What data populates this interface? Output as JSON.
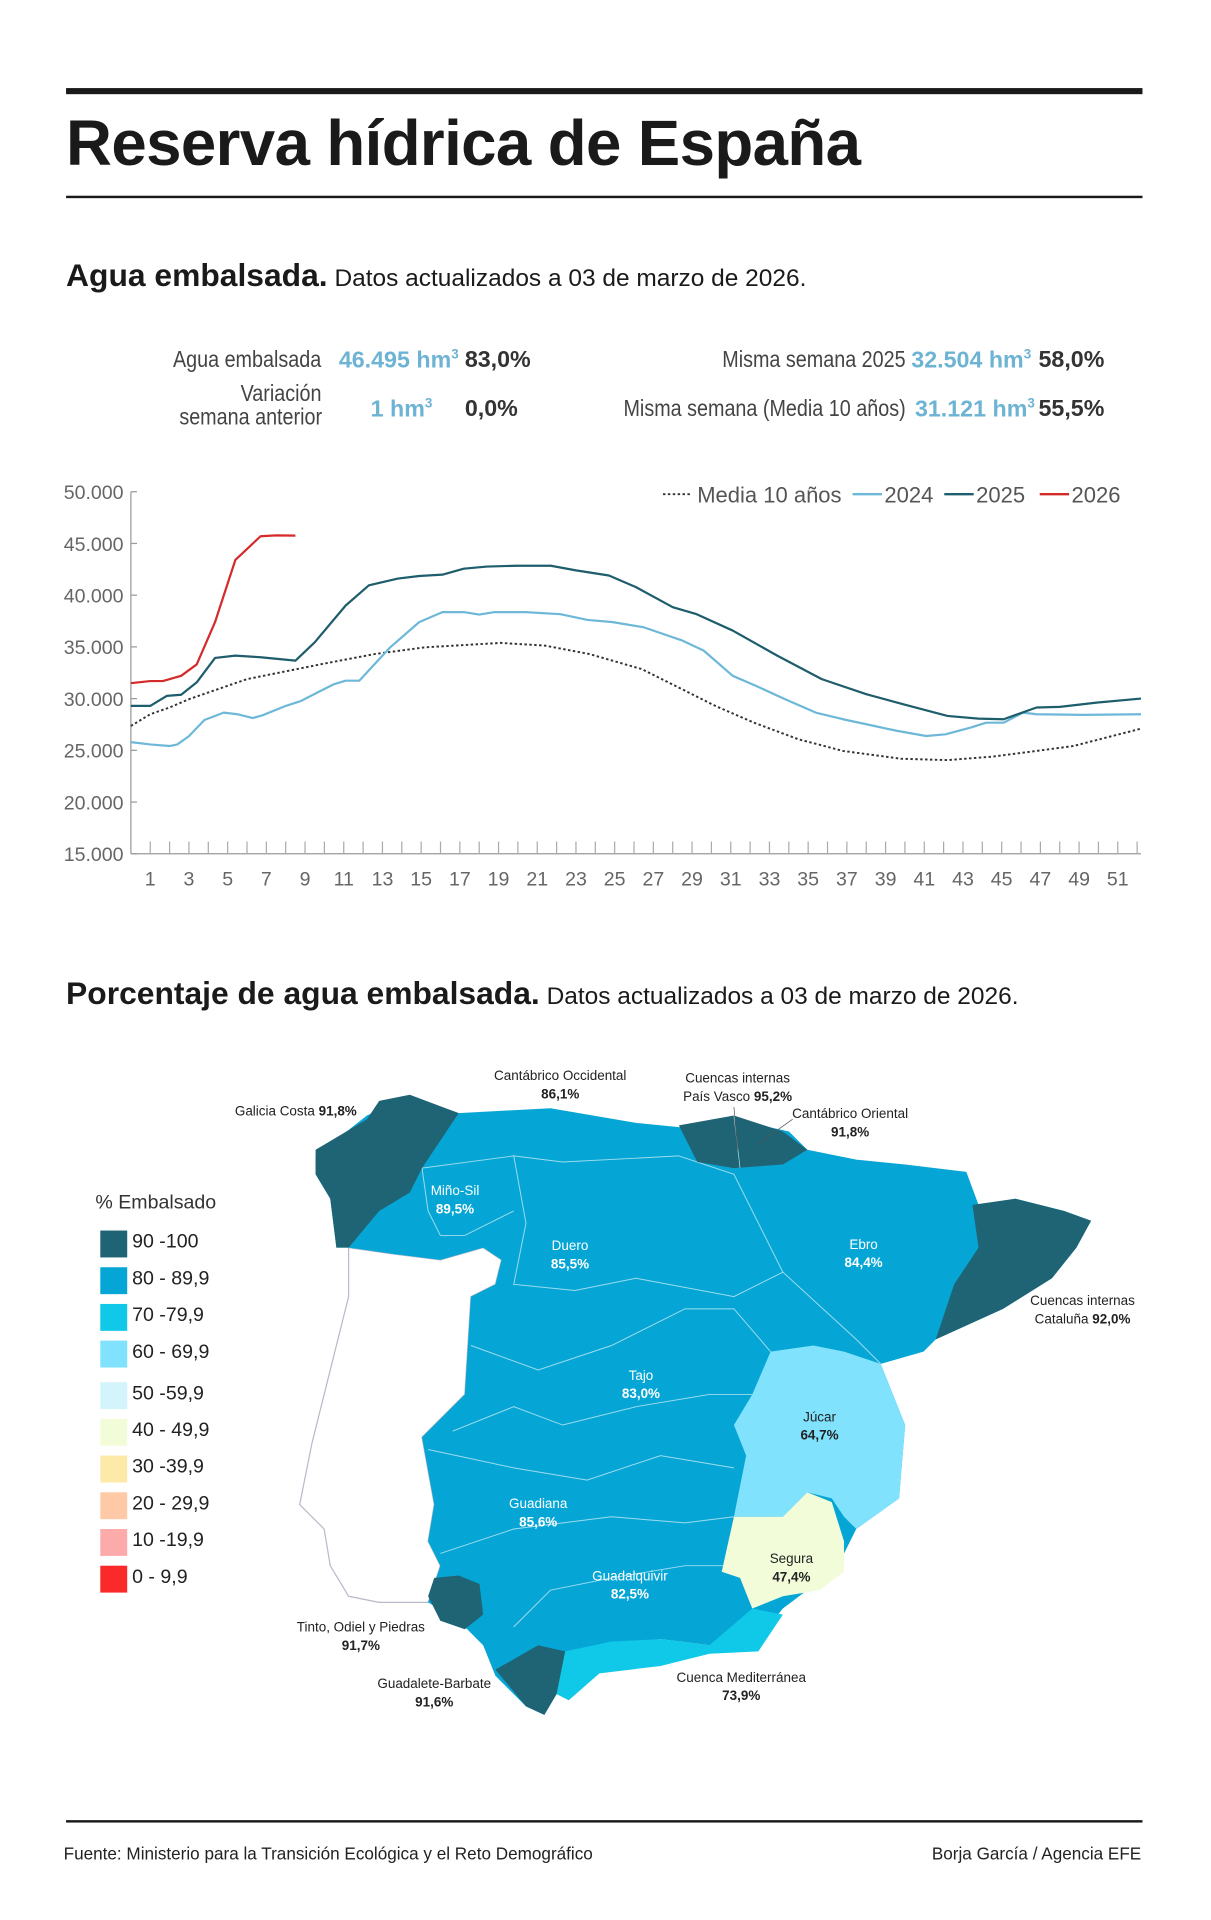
{
  "title": "Reserva hídrica de España",
  "section1": {
    "heading": "Agua embalsada.",
    "subtitle": "Datos actualizados a 03 de marzo de 2026."
  },
  "stats": {
    "current": {
      "label": "Agua embalsada",
      "value": "46.495 hm",
      "sup": "3",
      "pct": "83,0%"
    },
    "variation": {
      "label1": "Variación",
      "label2": "semana anterior",
      "value": "1 hm",
      "sup": "3",
      "pct": "0,0%"
    },
    "last_year": {
      "label": "Misma semana 2025",
      "value": "32.504 hm",
      "sup": "3",
      "pct": "58,0%"
    },
    "avg10": {
      "label": "Misma semana (Media 10 años)",
      "value": "31.121 hm",
      "sup": "3",
      "pct": "55,5%"
    }
  },
  "chart_data": {
    "type": "line",
    "xlabel": "",
    "ylabel": "",
    "ylim": [
      15000,
      50000
    ],
    "xlim": [
      0,
      52.2
    ],
    "yticks": [
      "15.000",
      "20.000",
      "25.000",
      "30.000",
      "35.000",
      "40.000",
      "45.000",
      "50.000"
    ],
    "ytick_values": [
      15000,
      20000,
      25000,
      30000,
      35000,
      40000,
      45000,
      50000
    ],
    "xticks": [
      "1",
      "3",
      "5",
      "7",
      "9",
      "11",
      "13",
      "15",
      "17",
      "19",
      "21",
      "23",
      "25",
      "27",
      "29",
      "31",
      "33",
      "35",
      "37",
      "39",
      "41",
      "43",
      "45",
      "47",
      "49",
      "51"
    ],
    "legend_position": "top-right",
    "grid": false,
    "series": [
      {
        "name": "Media 10 años",
        "color": "#333333",
        "style": "dotted",
        "x": [
          0,
          1,
          2,
          3,
          6,
          9.9,
          12.6,
          15.2,
          19.1,
          21.4,
          23.7,
          26.4,
          28.3,
          30.2,
          32.2,
          34.5,
          36.8,
          39.8,
          42.2,
          44.5,
          46.8,
          48.7,
          52.2
        ],
        "y": [
          27360,
          28490,
          29140,
          29950,
          31890,
          33350,
          34310,
          34960,
          35380,
          35120,
          34310,
          32860,
          31080,
          29300,
          27680,
          26070,
          24940,
          24190,
          24060,
          24390,
          24940,
          25420,
          27100
        ]
      },
      {
        "name": "2024",
        "color": "#6db8d8",
        "style": "solid",
        "x": [
          0,
          1,
          2,
          2.4,
          3,
          3.8,
          4.8,
          5.5,
          6.3,
          6.8,
          8,
          8.8,
          9.7,
          10.5,
          11.1,
          11.8,
          13.4,
          14.9,
          16.1,
          17.2,
          18,
          18.8,
          20.4,
          22.2,
          23.6,
          24.9,
          26.5,
          28.5,
          29.6,
          31.1,
          32.3,
          33.8,
          35.4,
          36.8,
          38,
          39.6,
          41.1,
          42.1,
          43.4,
          44.2,
          45.1,
          46.1,
          46.8,
          49.2,
          52.2
        ],
        "y": [
          25800,
          25570,
          25420,
          25570,
          26380,
          27940,
          28650,
          28490,
          28130,
          28390,
          29300,
          29780,
          30660,
          31400,
          31730,
          31730,
          34960,
          37390,
          38360,
          38360,
          38130,
          38360,
          38360,
          38160,
          37610,
          37390,
          36900,
          35610,
          34640,
          32210,
          31240,
          29950,
          28650,
          28010,
          27520,
          26880,
          26390,
          26550,
          27200,
          27680,
          27680,
          28650,
          28490,
          28430,
          28490
        ]
      },
      {
        "name": "2025",
        "color": "#1e5d6b",
        "style": "solid",
        "x": [
          0,
          1,
          1.85,
          2.6,
          3.4,
          4.35,
          5.4,
          6.7,
          8.5,
          9.5,
          11.1,
          12.3,
          13.8,
          14.9,
          16.1,
          17.2,
          18.4,
          19.9,
          21.7,
          23,
          24.7,
          26.1,
          28,
          29.2,
          31.1,
          33.4,
          35.7,
          38,
          39.9,
          42.2,
          43.8,
          45.1,
          46.8,
          48,
          49.9,
          52.2
        ],
        "y": [
          29300,
          29300,
          30270,
          30370,
          31570,
          33930,
          34150,
          34000,
          33670,
          35450,
          39000,
          40950,
          41600,
          41850,
          41980,
          42560,
          42760,
          42850,
          42850,
          42400,
          41900,
          40780,
          38840,
          38190,
          36580,
          34150,
          31890,
          30430,
          29460,
          28330,
          28070,
          28010,
          29140,
          29200,
          29620,
          30000
        ]
      },
      {
        "name": "2026",
        "color": "#d42a2a",
        "style": "solid",
        "x": [
          0,
          1,
          1.65,
          2.6,
          3.4,
          4.35,
          5.4,
          6.7,
          7.5,
          8.5
        ],
        "y": [
          31500,
          31700,
          31700,
          32200,
          33300,
          37400,
          43400,
          45700,
          45780,
          45760
        ]
      }
    ]
  },
  "section2": {
    "heading": "Porcentaje de agua embalsada.",
    "subtitle": "Datos actualizados a 03 de marzo de 2026."
  },
  "map": {
    "legend_title": "% Embalsado",
    "legend": [
      {
        "label": "90 -100",
        "color": "#1f6474"
      },
      {
        "label": "80 - 89,9",
        "color": "#05a6d5"
      },
      {
        "label": "70 -79,9",
        "color": "#10c8e8"
      },
      {
        "label": "60 - 69,9",
        "color": "#80e2fc"
      },
      {
        "label": "50 -59,9",
        "color": "#d4f4fc"
      },
      {
        "label": "40 - 49,9",
        "color": "#f3fcd9"
      },
      {
        "label": "30 -39,9",
        "color": "#fdeaa8"
      },
      {
        "label": "20 - 29,9",
        "color": "#fdc9a6"
      },
      {
        "label": "10 -19,9",
        "color": "#fcaaaa"
      },
      {
        "label": "0 - 9,9",
        "color": "#fb2a2a"
      }
    ],
    "basins": {
      "galicia": {
        "name": "Galicia Costa",
        "pct": "91,8%"
      },
      "cant_occ": {
        "name": "Cantábrico Occidental",
        "pct": "86,1%"
      },
      "pais_vasco": {
        "name1": "Cuencas internas",
        "name2": "País Vasco",
        "pct": "95,2%"
      },
      "cant_or": {
        "name": "Cantábrico Oriental",
        "pct": "91,8%"
      },
      "mino": {
        "name": "Miño-Sil",
        "pct": "89,5%"
      },
      "duero": {
        "name": "Duero",
        "pct": "85,5%"
      },
      "ebro": {
        "name": "Ebro",
        "pct": "84,4%"
      },
      "cataluna": {
        "name1": "Cuencas internas",
        "name2": "Cataluña",
        "pct": "92,0%"
      },
      "tajo": {
        "name": "Tajo",
        "pct": "83,0%"
      },
      "jucar": {
        "name": "Júcar",
        "pct": "64,7%"
      },
      "guadiana": {
        "name": "Guadiana",
        "pct": "85,6%"
      },
      "guadalquivir": {
        "name": "Guadalquivir",
        "pct": "82,5%"
      },
      "segura": {
        "name": "Segura",
        "pct": "47,4%"
      },
      "tinto": {
        "name": "Tinto, Odiel y Piedras",
        "pct": "91,7%"
      },
      "guadalete": {
        "name": "Guadalete-Barbate",
        "pct": "91,6%"
      },
      "mediterranea": {
        "name": "Cuenca Mediterránea",
        "pct": "73,9%"
      }
    }
  },
  "footer": {
    "source": "Fuente: Ministerio para la Transición Ecológica y el Reto Demográfico",
    "credit": "Borja García / Agencia EFE"
  }
}
